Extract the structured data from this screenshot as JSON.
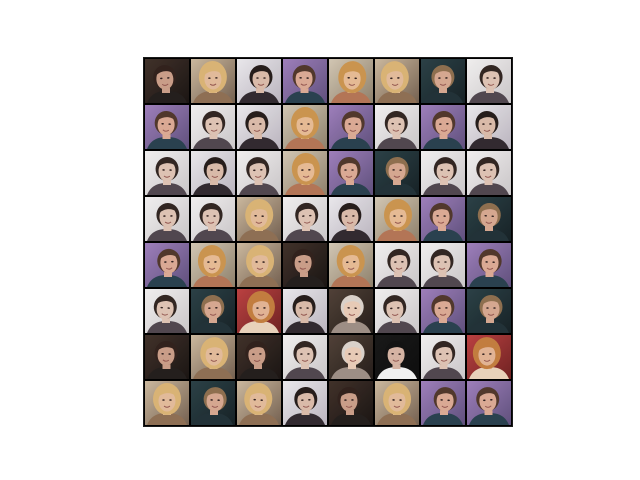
{
  "grid": {
    "rows": 8,
    "cols": 8,
    "palettes": {
      "a": {
        "bg1": "#3a2a22",
        "bg2": "#120c0a",
        "skin": "#c79a84",
        "hair": "#2a1a14",
        "shirt": "#1c1614"
      },
      "b": {
        "bg1": "#c9b59a",
        "bg2": "#6f5b4a",
        "skin": "#e0b896",
        "hair": "#d8b070",
        "shirt": "#8a6a4e"
      },
      "c": {
        "bg1": "#e8e6ea",
        "bg2": "#b8b2bc",
        "skin": "#d8b8a6",
        "hair": "#1e1412",
        "shirt": "#2a2228"
      },
      "d": {
        "bg1": "#9a7ab8",
        "bg2": "#5a4a78",
        "skin": "#d9a690",
        "hair": "#4a3024",
        "shirt": "#223a48"
      },
      "e": {
        "bg1": "#d0c4b0",
        "bg2": "#8a7c66",
        "skin": "#e4b890",
        "hair": "#c89048",
        "shirt": "#b07050"
      },
      "f": {
        "bg1": "#243a40",
        "bg2": "#0e1a1e",
        "skin": "#d4a48c",
        "hair": "#8a6a48",
        "shirt": "#1a2a30"
      },
      "g": {
        "bg1": "#f0eeee",
        "bg2": "#c8c4c6",
        "skin": "#dcc0b0",
        "hair": "#2a1e1a",
        "shirt": "#4a4048"
      },
      "h": {
        "bg1": "#b83a3a",
        "bg2": "#6a1a1a",
        "skin": "#e0b090",
        "hair": "#c07838",
        "shirt": "#e8d0b8"
      },
      "i": {
        "bg1": "#4a3a30",
        "bg2": "#1e1612",
        "skin": "#e6c8b4",
        "hair": "#d8d0c8",
        "shirt": "#9a8a80"
      },
      "j": {
        "bg1": "#101010",
        "bg2": "#050505",
        "skin": "#d4b0a0",
        "hair": "#0a0a0a",
        "shirt": "#f0f0f0"
      }
    },
    "tiles": [
      "a",
      "b",
      "c",
      "d",
      "e",
      "b",
      "f",
      "g",
      "d",
      "g",
      "c",
      "e",
      "d",
      "g",
      "d",
      "c",
      "g",
      "c",
      "g",
      "e",
      "d",
      "f",
      "g",
      "g",
      "g",
      "g",
      "b",
      "g",
      "c",
      "e",
      "d",
      "f",
      "d",
      "e",
      "b",
      "a",
      "e",
      "g",
      "g",
      "d",
      "g",
      "f",
      "h",
      "c",
      "i",
      "g",
      "d",
      "f",
      "a",
      "b",
      "a",
      "g",
      "i",
      "j",
      "g",
      "h",
      "b",
      "f",
      "b",
      "c",
      "a",
      "b",
      "d",
      "d"
    ]
  }
}
